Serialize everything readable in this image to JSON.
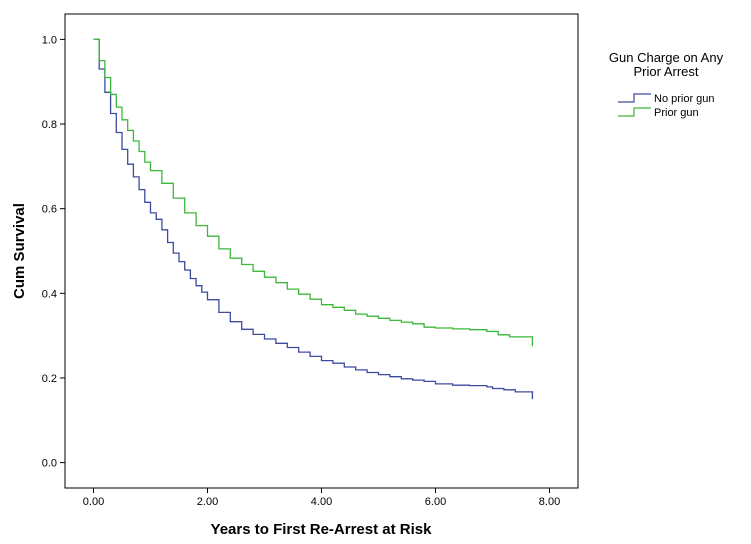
{
  "chart_data": {
    "type": "line",
    "title": "",
    "xlabel": "Years to First Re-Arrest at Risk",
    "ylabel": "Cum Survival",
    "xlim": [
      -0.5,
      8.5
    ],
    "ylim": [
      -0.06,
      1.06
    ],
    "x_ticks": [
      0,
      2,
      4,
      6,
      8
    ],
    "x_tick_labels": [
      "0.00",
      "2.00",
      "4.00",
      "6.00",
      "8.00"
    ],
    "y_ticks": [
      0.0,
      0.2,
      0.4,
      0.6,
      0.8,
      1.0
    ],
    "y_tick_labels": [
      "0.0",
      "0.2",
      "0.4",
      "0.6",
      "0.8",
      "1.0"
    ],
    "grid": false,
    "legend": {
      "title": "Gun Charge on Any Prior Arrest",
      "title_lines": [
        "Gun Charge on Any",
        "Prior Arrest"
      ],
      "placement": "right, outside plot"
    },
    "series": [
      {
        "name": "No prior gun",
        "color": "#3b4ba0",
        "step": true,
        "x": [
          0,
          0.1,
          0.2,
          0.3,
          0.4,
          0.5,
          0.6,
          0.7,
          0.8,
          0.9,
          1.0,
          1.1,
          1.2,
          1.3,
          1.4,
          1.5,
          1.6,
          1.7,
          1.8,
          1.9,
          2.0,
          2.2,
          2.4,
          2.6,
          2.8,
          3.0,
          3.2,
          3.4,
          3.6,
          3.8,
          4.0,
          4.2,
          4.4,
          4.6,
          4.8,
          5.0,
          5.2,
          5.4,
          5.6,
          5.8,
          6.0,
          6.3,
          6.6,
          6.9,
          7.0,
          7.2,
          7.4,
          7.7,
          7.7
        ],
        "values": [
          1.0,
          0.93,
          0.875,
          0.825,
          0.78,
          0.74,
          0.705,
          0.675,
          0.645,
          0.615,
          0.59,
          0.575,
          0.55,
          0.52,
          0.495,
          0.475,
          0.455,
          0.435,
          0.418,
          0.403,
          0.385,
          0.355,
          0.333,
          0.315,
          0.303,
          0.292,
          0.282,
          0.272,
          0.261,
          0.251,
          0.241,
          0.235,
          0.226,
          0.219,
          0.213,
          0.208,
          0.203,
          0.198,
          0.195,
          0.192,
          0.186,
          0.183,
          0.182,
          0.179,
          0.175,
          0.172,
          0.167,
          0.165,
          0.15
        ]
      },
      {
        "name": "Prior gun",
        "color": "#3cb83a",
        "step": true,
        "x": [
          0,
          0.1,
          0.2,
          0.3,
          0.4,
          0.5,
          0.6,
          0.7,
          0.8,
          0.9,
          1.0,
          1.2,
          1.4,
          1.6,
          1.8,
          2.0,
          2.2,
          2.4,
          2.6,
          2.8,
          3.0,
          3.2,
          3.4,
          3.6,
          3.8,
          4.0,
          4.2,
          4.4,
          4.6,
          4.8,
          5.0,
          5.2,
          5.4,
          5.6,
          5.8,
          6.0,
          6.3,
          6.6,
          6.9,
          7.1,
          7.3,
          7.7,
          7.7
        ],
        "values": [
          1.0,
          0.95,
          0.91,
          0.87,
          0.84,
          0.81,
          0.785,
          0.76,
          0.735,
          0.71,
          0.69,
          0.66,
          0.625,
          0.59,
          0.56,
          0.535,
          0.505,
          0.483,
          0.468,
          0.452,
          0.438,
          0.425,
          0.41,
          0.398,
          0.386,
          0.373,
          0.367,
          0.36,
          0.351,
          0.346,
          0.341,
          0.336,
          0.332,
          0.328,
          0.32,
          0.318,
          0.316,
          0.314,
          0.31,
          0.302,
          0.297,
          0.296,
          0.275
        ]
      }
    ]
  }
}
